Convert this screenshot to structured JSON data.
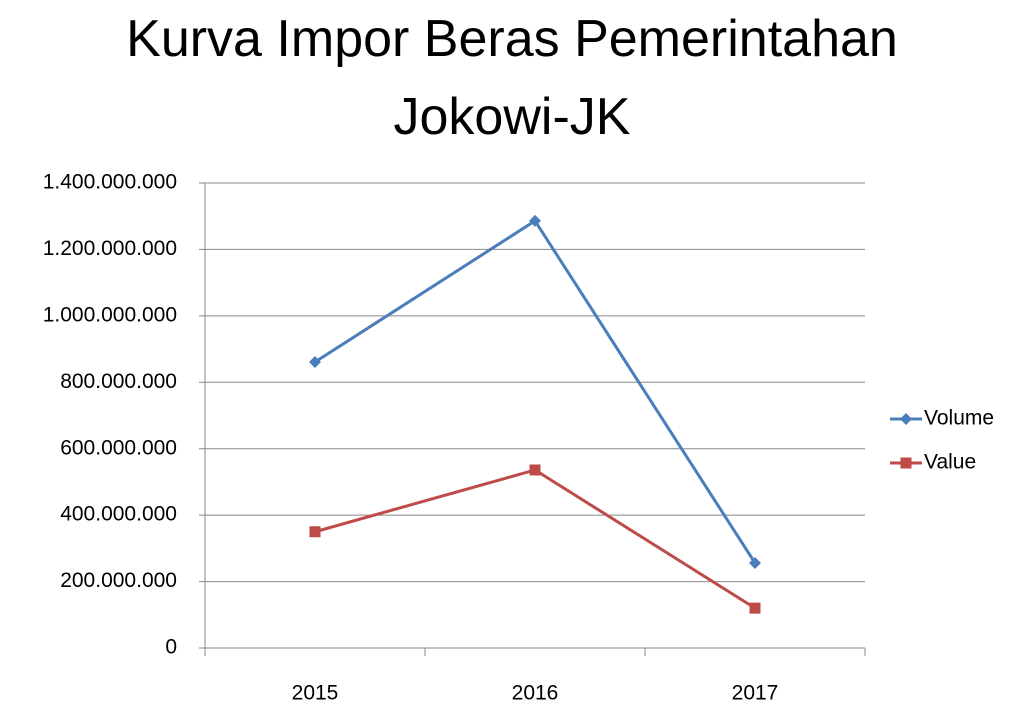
{
  "chart_data": {
    "type": "line",
    "title": "Kurva Impor Beras Pemerintahan Jokowi-JK",
    "categories": [
      "2015",
      "2016",
      "2017"
    ],
    "series": [
      {
        "name": "Volume",
        "color": "#4a7ebb",
        "marker": "diamond",
        "values": [
          861000000,
          1286000000,
          256000000
        ]
      },
      {
        "name": "Value",
        "color": "#be4b48",
        "marker": "square",
        "values": [
          350000000,
          536000000,
          120000000
        ]
      }
    ],
    "ylim": [
      0,
      1400000000
    ],
    "yticks": [
      0,
      {
        "value": 200000000,
        "label": "200.000.000"
      },
      {
        "value": 400000000,
        "label": "400.000.000"
      },
      {
        "value": 600000000,
        "label": "600.000.000"
      },
      {
        "value": 800000000,
        "label": "800.000.000"
      },
      {
        "value": 1000000000,
        "label": "1.000.000.000"
      },
      {
        "value": 1200000000,
        "label": "1.200.000.000"
      },
      {
        "value": 1400000000,
        "label": "1.400.000.000"
      }
    ],
    "grid": true,
    "legend": "right"
  }
}
